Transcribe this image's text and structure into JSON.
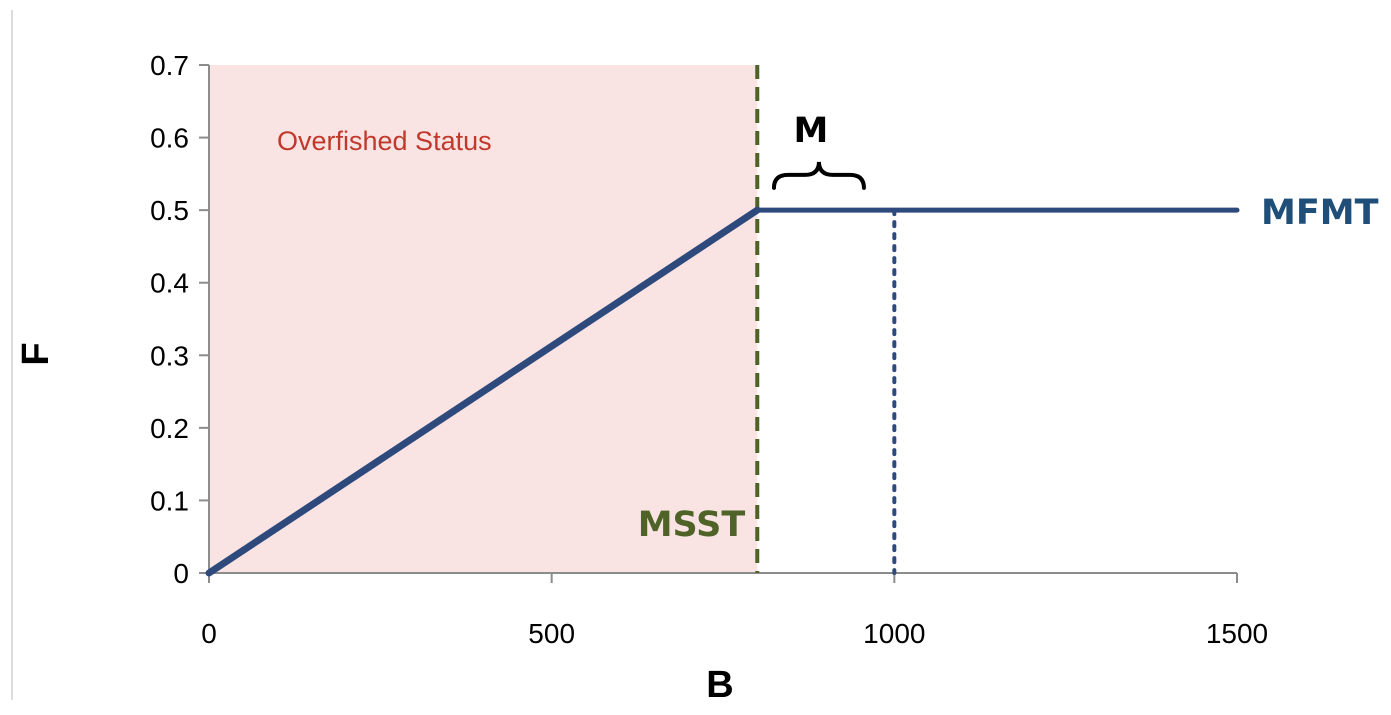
{
  "chart_data": {
    "type": "line",
    "title": "",
    "xlabel": "B",
    "ylabel": "F",
    "xlim": [
      0,
      1500
    ],
    "ylim": [
      0,
      0.7
    ],
    "xticks": [
      0,
      500,
      1000,
      1500
    ],
    "yticks": [
      0,
      0.1,
      0.2,
      0.3,
      0.4,
      0.5,
      0.6,
      0.7
    ],
    "grid": false,
    "legend": "none",
    "series": [
      {
        "x": [
          0,
          800,
          1500
        ],
        "y": [
          0,
          0.5,
          0.5
        ],
        "color": "#2e4a7d"
      }
    ],
    "regions": [
      {
        "label": "Overfished Status",
        "x_range": [
          0,
          800
        ],
        "y_range": [
          0,
          0.7
        ],
        "fill_color": "#f9e3e3",
        "label_color": "#c0392b"
      }
    ],
    "reference_lines": [
      {
        "label": "MSST",
        "orientation": "vertical",
        "x": 800,
        "style": "dashed",
        "color": "#4f6228"
      },
      {
        "label": "",
        "orientation": "vertical",
        "x": 1000,
        "y_top": 0.5,
        "style": "dotted",
        "color": "#2e4a7d"
      }
    ],
    "annotations": [
      {
        "label": "MFMT",
        "color": "#1f4e79",
        "attached_to": "horizontal segment at F = 0.5"
      },
      {
        "label": "M",
        "color": "#000000",
        "brace_x_range": [
          820,
          960
        ],
        "brace_y": 0.55
      }
    ]
  }
}
